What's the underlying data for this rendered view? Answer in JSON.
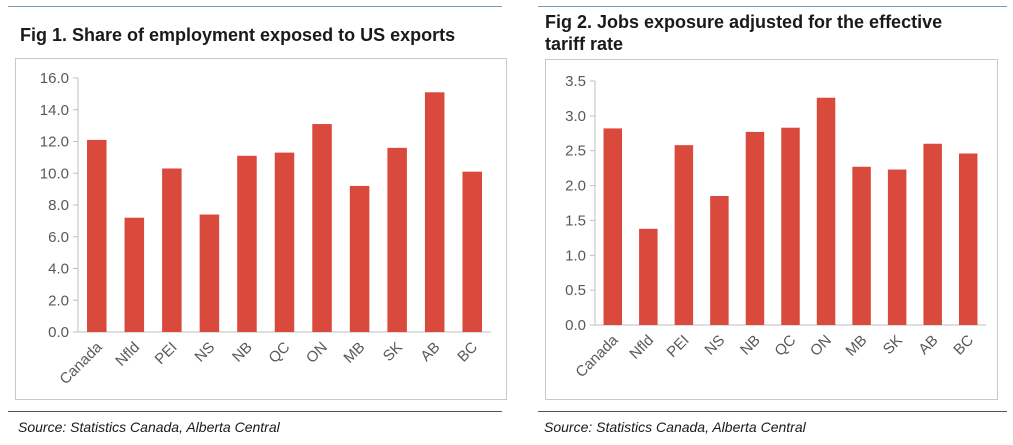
{
  "chart_data": [
    {
      "type": "bar",
      "title": "Fig 1. Share of employment exposed to US exports",
      "categories": [
        "Canada",
        "Nfld",
        "PEI",
        "NS",
        "NB",
        "QC",
        "ON",
        "MB",
        "SK",
        "AB",
        "BC"
      ],
      "values": [
        12.1,
        7.2,
        10.3,
        7.4,
        11.1,
        11.3,
        13.1,
        9.2,
        11.6,
        15.1,
        10.1
      ],
      "ylim": [
        0,
        16
      ],
      "yticks": [
        "0.0",
        "2.0",
        "4.0",
        "6.0",
        "8.0",
        "10.0",
        "12.0",
        "14.0",
        "16.0"
      ],
      "grid": false,
      "bar_color": "#d94a3c",
      "source": "Source: Statistics Canada, Alberta Central"
    },
    {
      "type": "bar",
      "title": "Fig 2. Jobs exposure adjusted for the effective tariff rate",
      "categories": [
        "Canada",
        "Nfld",
        "PEI",
        "NS",
        "NB",
        "QC",
        "ON",
        "MB",
        "SK",
        "AB",
        "BC"
      ],
      "values": [
        2.82,
        1.38,
        2.58,
        1.85,
        2.77,
        2.83,
        3.26,
        2.27,
        2.23,
        2.6,
        2.46
      ],
      "ylim": [
        0,
        3.5
      ],
      "yticks": [
        "0.0",
        "0.5",
        "1.0",
        "1.5",
        "2.0",
        "2.5",
        "3.0",
        "3.5"
      ],
      "grid": false,
      "bar_color": "#d94a3c",
      "source": "Source: Statistics Canada, Alberta Central"
    }
  ]
}
